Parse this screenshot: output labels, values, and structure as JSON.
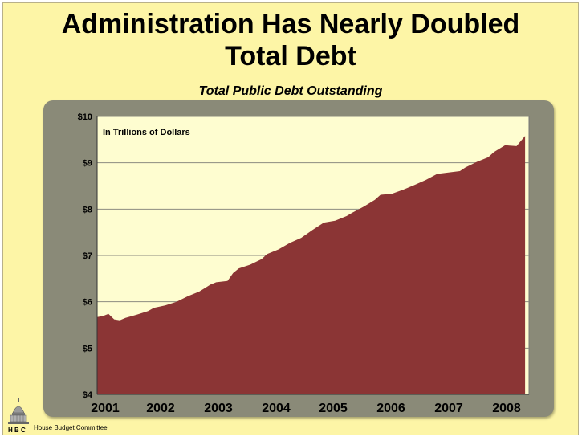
{
  "slide": {
    "title_line1": "Administration Has Nearly Doubled",
    "title_line2": "Total Debt",
    "footer_org": "House Budget Committee",
    "logo_text": "H B C",
    "colors": {
      "background": "#fdf5a6",
      "plot_background": "#fefdd0",
      "area_fill": "#8b3535"
    }
  },
  "chart_data": {
    "type": "area",
    "title": "Total Public Debt Outstanding",
    "annotation": "In Trillions of Dollars",
    "xlabel": "",
    "ylabel": "",
    "ylim": [
      4,
      10
    ],
    "yticks": [
      "$4",
      "$5",
      "$6",
      "$7",
      "$8",
      "$9",
      "$10"
    ],
    "xticks": [
      "2001",
      "2002",
      "2003",
      "2004",
      "2005",
      "2006",
      "2007",
      "2008"
    ],
    "grid": "horizontal",
    "series": [
      {
        "x": [
          2001.0,
          2001.1,
          2001.2,
          2001.3,
          2001.4,
          2001.5,
          2001.7,
          2001.9,
          2002.0,
          2002.2,
          2002.4,
          2002.6,
          2002.8,
          2003.0,
          2003.1,
          2003.3,
          2003.4,
          2003.5,
          2003.7,
          2003.9,
          2004.0,
          2004.2,
          2004.4,
          2004.6,
          2004.8,
          2005.0,
          2005.2,
          2005.4,
          2005.5,
          2005.7,
          2005.9,
          2006.0,
          2006.2,
          2006.4,
          2006.6,
          2006.8,
          2007.0,
          2007.2,
          2007.4,
          2007.5,
          2007.7,
          2007.9,
          2008.0,
          2008.2,
          2008.4,
          2008.55
        ],
        "values": [
          5.67,
          5.69,
          5.74,
          5.62,
          5.6,
          5.65,
          5.72,
          5.8,
          5.87,
          5.92,
          6.0,
          6.12,
          6.22,
          6.37,
          6.42,
          6.45,
          6.62,
          6.72,
          6.8,
          6.92,
          7.03,
          7.13,
          7.27,
          7.38,
          7.55,
          7.71,
          7.75,
          7.85,
          7.92,
          8.05,
          8.2,
          8.31,
          8.33,
          8.42,
          8.52,
          8.63,
          8.76,
          8.79,
          8.82,
          8.9,
          9.02,
          9.12,
          9.23,
          9.38,
          9.36,
          9.58
        ]
      }
    ]
  }
}
